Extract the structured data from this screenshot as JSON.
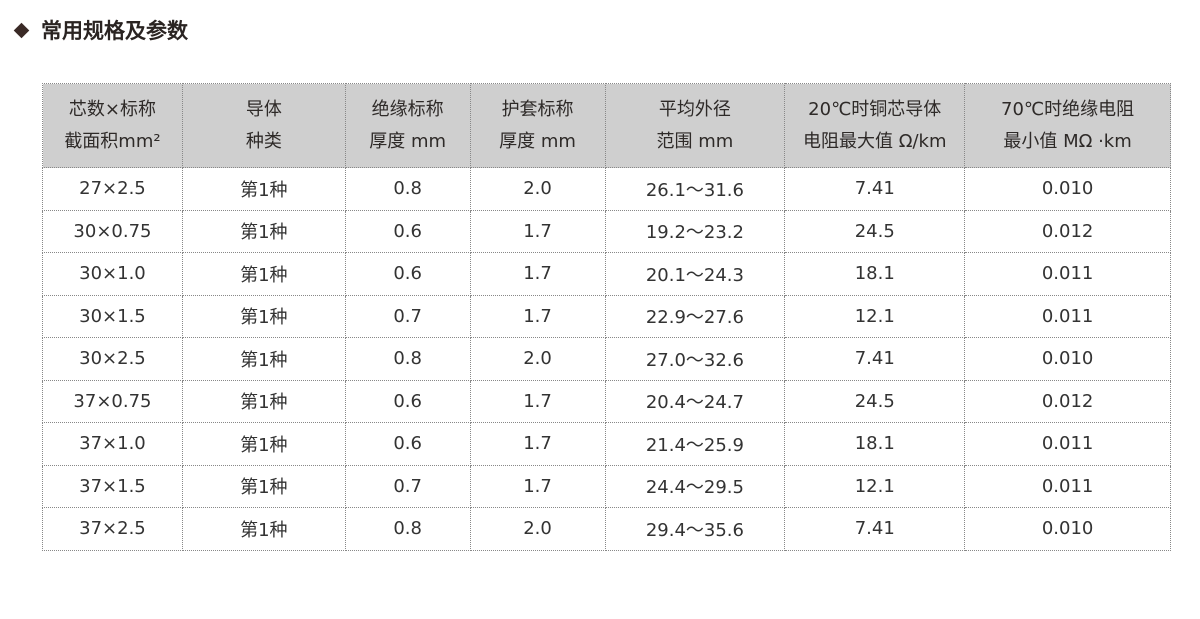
{
  "title": "常用规格及参数",
  "icons": {
    "bullet": "diamond-icon"
  },
  "colors": {
    "header_bg": "#cfcfcf",
    "border": "#888888",
    "text": "#333333"
  },
  "table": {
    "headers": [
      [
        "芯数×标称",
        "截面积mm²"
      ],
      [
        "导体",
        "种类"
      ],
      [
        "绝缘标称",
        "厚度 mm"
      ],
      [
        "护套标称",
        "厚度 mm"
      ],
      [
        "平均外径",
        "范围 mm"
      ],
      [
        "20℃时铜芯导体",
        "电阻最大值 Ω/km"
      ],
      [
        "70℃时绝缘电阻",
        "最小值 MΩ ·km"
      ]
    ],
    "rows": [
      [
        "27×2.5",
        "第1种",
        "0.8",
        "2.0",
        "26.1～31.6",
        "7.41",
        "0.010"
      ],
      [
        "30×0.75",
        "第1种",
        "0.6",
        "1.7",
        "19.2～23.2",
        "24.5",
        "0.012"
      ],
      [
        "30×1.0",
        "第1种",
        "0.6",
        "1.7",
        "20.1～24.3",
        "18.1",
        "0.011"
      ],
      [
        "30×1.5",
        "第1种",
        "0.7",
        "1.7",
        "22.9～27.6",
        "12.1",
        "0.011"
      ],
      [
        "30×2.5",
        "第1种",
        "0.8",
        "2.0",
        "27.0～32.6",
        "7.41",
        "0.010"
      ],
      [
        "37×0.75",
        "第1种",
        "0.6",
        "1.7",
        "20.4～24.7",
        "24.5",
        "0.012"
      ],
      [
        "37×1.0",
        "第1种",
        "0.6",
        "1.7",
        "21.4～25.9",
        "18.1",
        "0.011"
      ],
      [
        "37×1.5",
        "第1种",
        "0.7",
        "1.7",
        "24.4～29.5",
        "12.1",
        "0.011"
      ],
      [
        "37×2.5",
        "第1种",
        "0.8",
        "2.0",
        "29.4～35.6",
        "7.41",
        "0.010"
      ]
    ]
  }
}
